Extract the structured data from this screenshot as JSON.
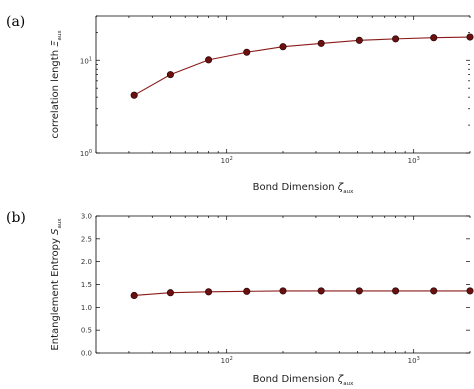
{
  "chart_data": [
    {
      "panel_label": "(a)",
      "type": "line",
      "x": [
        32,
        50,
        80,
        128,
        200,
        320,
        512,
        800,
        1280,
        2000
      ],
      "y": [
        4.2,
        7.0,
        10.1,
        12.2,
        14.0,
        15.2,
        16.4,
        17.0,
        17.5,
        17.8
      ],
      "xscale": "log",
      "yscale": "log",
      "xlim": [
        20,
        2000
      ],
      "ylim": [
        1,
        30
      ],
      "xticks": [
        {
          "value": 100,
          "base": "10",
          "exp": "2"
        },
        {
          "value": 1000,
          "base": "10",
          "exp": "3"
        }
      ],
      "yticks": [
        {
          "value": 1,
          "base": "10",
          "exp": "0"
        },
        {
          "value": 10,
          "base": "10",
          "exp": "1"
        }
      ],
      "ylabel": {
        "main": "correlation length ",
        "symbol": "Ξ",
        "sub": "aux"
      },
      "xlabel": {
        "main": "Bond Dimension ",
        "symbol": "ζ",
        "sub": "aux"
      },
      "line_color": "#8b1a1a",
      "marker_color": "#6b1010",
      "grid": false
    },
    {
      "panel_label": "(b)",
      "type": "line",
      "x": [
        32,
        50,
        80,
        128,
        200,
        320,
        512,
        800,
        1280,
        2000
      ],
      "y": [
        1.26,
        1.32,
        1.34,
        1.35,
        1.36,
        1.36,
        1.36,
        1.36,
        1.36,
        1.36
      ],
      "xscale": "log",
      "yscale": "linear",
      "xlim": [
        20,
        2000
      ],
      "ylim": [
        0,
        3.0
      ],
      "xticks": [
        {
          "value": 100,
          "base": "10",
          "exp": "2"
        },
        {
          "value": 1000,
          "base": "10",
          "exp": "3"
        }
      ],
      "yticks": [
        {
          "value": 0,
          "label": "0.0"
        },
        {
          "value": 0.5,
          "label": "0.5"
        },
        {
          "value": 1.0,
          "label": "1.0"
        },
        {
          "value": 1.5,
          "label": "1.5"
        },
        {
          "value": 2.0,
          "label": "2.0"
        },
        {
          "value": 2.5,
          "label": "2.5"
        },
        {
          "value": 3.0,
          "label": "3.0"
        }
      ],
      "ylabel": {
        "main": "Entanglement Entropy ",
        "symbol": "S",
        "sub": "aux"
      },
      "xlabel": {
        "main": "Bond Dimension ",
        "symbol": "ζ",
        "sub": "aux"
      },
      "line_color": "#8b1a1a",
      "marker_color": "#6b1010",
      "grid": false
    }
  ]
}
